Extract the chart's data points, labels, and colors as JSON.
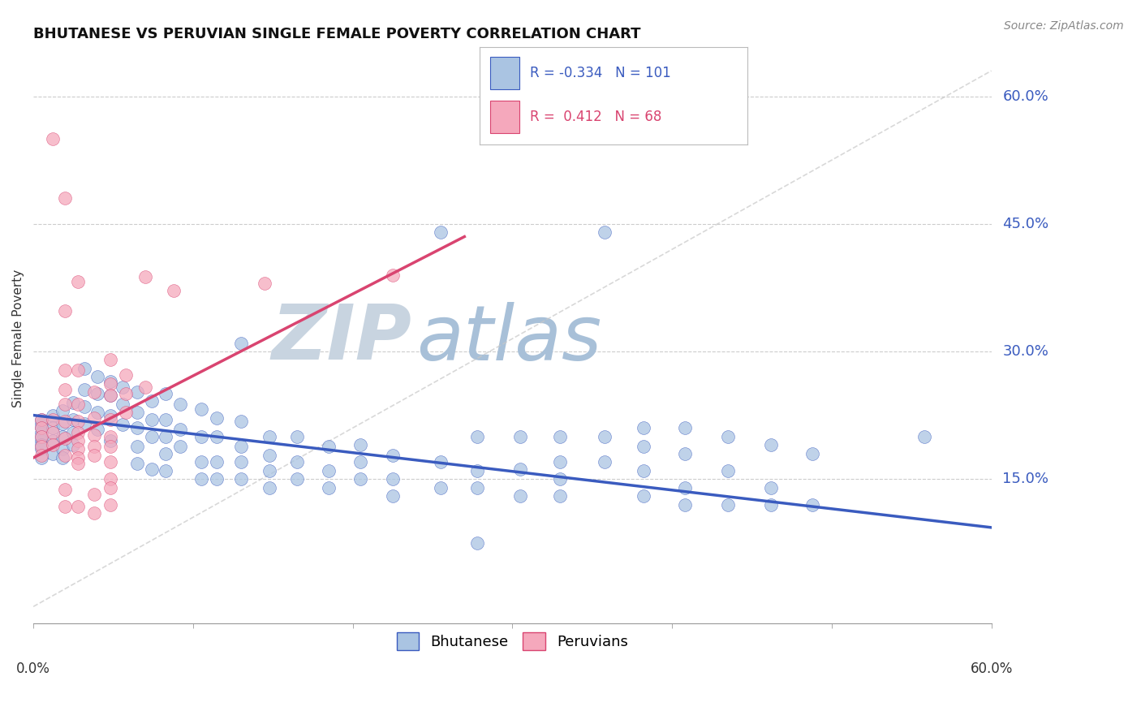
{
  "title": "BHUTANESE VS PERUVIAN SINGLE FEMALE POVERTY CORRELATION CHART",
  "source": "Source: ZipAtlas.com",
  "ylabel": "Single Female Poverty",
  "xlim": [
    0.0,
    0.6
  ],
  "ylim": [
    -0.02,
    0.65
  ],
  "yticks": [
    0.15,
    0.3,
    0.45,
    0.6
  ],
  "ytick_labels": [
    "15.0%",
    "30.0%",
    "45.0%",
    "60.0%"
  ],
  "legend_blue_label": "Bhutanese",
  "legend_pink_label": "Peruvians",
  "blue_R": "-0.334",
  "blue_N": "101",
  "pink_R": "0.412",
  "pink_N": "68",
  "blue_color": "#aac4e2",
  "pink_color": "#f5a8bc",
  "blue_line_color": "#3a5bbf",
  "pink_line_color": "#d94470",
  "diagonal_color": "#c8c8c8",
  "watermark_zip": "ZIP",
  "watermark_atlas": "atlas",
  "watermark_zip_color": "#c8d4e0",
  "watermark_atlas_color": "#a8c0d8",
  "background_color": "#ffffff",
  "blue_line_x0": 0.0,
  "blue_line_y0": 0.225,
  "blue_line_x1": 0.6,
  "blue_line_y1": 0.093,
  "pink_line_x0": 0.0,
  "pink_line_y0": 0.175,
  "pink_line_x1": 0.27,
  "pink_line_y1": 0.435,
  "blue_scatter": [
    [
      0.005,
      0.215
    ],
    [
      0.005,
      0.205
    ],
    [
      0.005,
      0.195
    ],
    [
      0.005,
      0.185
    ],
    [
      0.005,
      0.175
    ],
    [
      0.005,
      0.22
    ],
    [
      0.005,
      0.21
    ],
    [
      0.005,
      0.2
    ],
    [
      0.005,
      0.19
    ],
    [
      0.012,
      0.225
    ],
    [
      0.012,
      0.21
    ],
    [
      0.012,
      0.195
    ],
    [
      0.012,
      0.18
    ],
    [
      0.018,
      0.23
    ],
    [
      0.018,
      0.215
    ],
    [
      0.018,
      0.2
    ],
    [
      0.018,
      0.185
    ],
    [
      0.018,
      0.175
    ],
    [
      0.025,
      0.24
    ],
    [
      0.025,
      0.22
    ],
    [
      0.025,
      0.205
    ],
    [
      0.025,
      0.19
    ],
    [
      0.032,
      0.28
    ],
    [
      0.032,
      0.255
    ],
    [
      0.032,
      0.235
    ],
    [
      0.032,
      0.215
    ],
    [
      0.04,
      0.27
    ],
    [
      0.04,
      0.25
    ],
    [
      0.04,
      0.228
    ],
    [
      0.04,
      0.208
    ],
    [
      0.048,
      0.265
    ],
    [
      0.048,
      0.248
    ],
    [
      0.048,
      0.225
    ],
    [
      0.048,
      0.195
    ],
    [
      0.056,
      0.258
    ],
    [
      0.056,
      0.238
    ],
    [
      0.056,
      0.214
    ],
    [
      0.065,
      0.252
    ],
    [
      0.065,
      0.228
    ],
    [
      0.065,
      0.21
    ],
    [
      0.065,
      0.188
    ],
    [
      0.065,
      0.168
    ],
    [
      0.074,
      0.242
    ],
    [
      0.074,
      0.22
    ],
    [
      0.074,
      0.2
    ],
    [
      0.074,
      0.162
    ],
    [
      0.083,
      0.25
    ],
    [
      0.083,
      0.22
    ],
    [
      0.083,
      0.2
    ],
    [
      0.083,
      0.18
    ],
    [
      0.083,
      0.16
    ],
    [
      0.092,
      0.238
    ],
    [
      0.092,
      0.208
    ],
    [
      0.092,
      0.188
    ],
    [
      0.105,
      0.232
    ],
    [
      0.105,
      0.2
    ],
    [
      0.105,
      0.17
    ],
    [
      0.105,
      0.15
    ],
    [
      0.115,
      0.222
    ],
    [
      0.115,
      0.2
    ],
    [
      0.115,
      0.17
    ],
    [
      0.115,
      0.15
    ],
    [
      0.13,
      0.31
    ],
    [
      0.13,
      0.218
    ],
    [
      0.13,
      0.188
    ],
    [
      0.13,
      0.17
    ],
    [
      0.13,
      0.15
    ],
    [
      0.148,
      0.2
    ],
    [
      0.148,
      0.178
    ],
    [
      0.148,
      0.16
    ],
    [
      0.148,
      0.14
    ],
    [
      0.165,
      0.2
    ],
    [
      0.165,
      0.17
    ],
    [
      0.165,
      0.15
    ],
    [
      0.185,
      0.188
    ],
    [
      0.185,
      0.16
    ],
    [
      0.185,
      0.14
    ],
    [
      0.205,
      0.19
    ],
    [
      0.205,
      0.17
    ],
    [
      0.205,
      0.15
    ],
    [
      0.225,
      0.178
    ],
    [
      0.225,
      0.15
    ],
    [
      0.225,
      0.13
    ],
    [
      0.255,
      0.44
    ],
    [
      0.255,
      0.17
    ],
    [
      0.255,
      0.14
    ],
    [
      0.278,
      0.2
    ],
    [
      0.278,
      0.16
    ],
    [
      0.278,
      0.14
    ],
    [
      0.278,
      0.075
    ],
    [
      0.305,
      0.2
    ],
    [
      0.305,
      0.162
    ],
    [
      0.305,
      0.13
    ],
    [
      0.33,
      0.2
    ],
    [
      0.33,
      0.17
    ],
    [
      0.33,
      0.15
    ],
    [
      0.33,
      0.13
    ],
    [
      0.358,
      0.44
    ],
    [
      0.358,
      0.2
    ],
    [
      0.358,
      0.17
    ],
    [
      0.382,
      0.21
    ],
    [
      0.382,
      0.188
    ],
    [
      0.382,
      0.16
    ],
    [
      0.382,
      0.13
    ],
    [
      0.408,
      0.21
    ],
    [
      0.408,
      0.18
    ],
    [
      0.408,
      0.14
    ],
    [
      0.408,
      0.12
    ],
    [
      0.435,
      0.2
    ],
    [
      0.435,
      0.16
    ],
    [
      0.435,
      0.12
    ],
    [
      0.462,
      0.19
    ],
    [
      0.462,
      0.14
    ],
    [
      0.462,
      0.12
    ],
    [
      0.488,
      0.18
    ],
    [
      0.488,
      0.12
    ],
    [
      0.558,
      0.2
    ]
  ],
  "pink_scatter": [
    [
      0.005,
      0.22
    ],
    [
      0.005,
      0.21
    ],
    [
      0.005,
      0.2
    ],
    [
      0.005,
      0.188
    ],
    [
      0.005,
      0.178
    ],
    [
      0.012,
      0.55
    ],
    [
      0.012,
      0.22
    ],
    [
      0.012,
      0.205
    ],
    [
      0.012,
      0.19
    ],
    [
      0.02,
      0.48
    ],
    [
      0.02,
      0.348
    ],
    [
      0.02,
      0.278
    ],
    [
      0.02,
      0.255
    ],
    [
      0.02,
      0.238
    ],
    [
      0.02,
      0.218
    ],
    [
      0.02,
      0.198
    ],
    [
      0.02,
      0.178
    ],
    [
      0.02,
      0.138
    ],
    [
      0.02,
      0.118
    ],
    [
      0.028,
      0.382
    ],
    [
      0.028,
      0.278
    ],
    [
      0.028,
      0.238
    ],
    [
      0.028,
      0.218
    ],
    [
      0.028,
      0.205
    ],
    [
      0.028,
      0.195
    ],
    [
      0.028,
      0.185
    ],
    [
      0.028,
      0.175
    ],
    [
      0.028,
      0.168
    ],
    [
      0.028,
      0.118
    ],
    [
      0.038,
      0.252
    ],
    [
      0.038,
      0.222
    ],
    [
      0.038,
      0.202
    ],
    [
      0.038,
      0.188
    ],
    [
      0.038,
      0.178
    ],
    [
      0.038,
      0.132
    ],
    [
      0.038,
      0.11
    ],
    [
      0.048,
      0.29
    ],
    [
      0.048,
      0.262
    ],
    [
      0.048,
      0.248
    ],
    [
      0.048,
      0.22
    ],
    [
      0.048,
      0.2
    ],
    [
      0.048,
      0.188
    ],
    [
      0.048,
      0.17
    ],
    [
      0.048,
      0.15
    ],
    [
      0.048,
      0.14
    ],
    [
      0.048,
      0.12
    ],
    [
      0.058,
      0.272
    ],
    [
      0.058,
      0.25
    ],
    [
      0.058,
      0.228
    ],
    [
      0.07,
      0.388
    ],
    [
      0.07,
      0.258
    ],
    [
      0.088,
      0.372
    ],
    [
      0.145,
      0.38
    ],
    [
      0.225,
      0.39
    ]
  ]
}
